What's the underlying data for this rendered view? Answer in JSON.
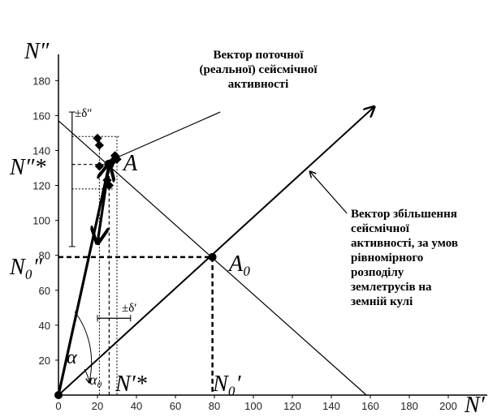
{
  "chart_data": {
    "type": "scatter",
    "xlim": [
      0,
      220
    ],
    "ylim": [
      0,
      195
    ],
    "xticks": [
      0,
      20,
      40,
      60,
      80,
      100,
      120,
      140,
      160,
      180,
      200
    ],
    "yticks": [
      20,
      40,
      60,
      80,
      100,
      120,
      140,
      160,
      180
    ],
    "series": [
      {
        "color": "#000000",
        "marker": "diamond",
        "x": [
          20,
          21,
          21,
          25,
          26,
          29,
          30,
          28
        ],
        "values": [
          147,
          143,
          131,
          123,
          120,
          137,
          135,
          134
        ]
      },
      {
        "color": "#000000",
        "marker": "dot",
        "x": [
          0,
          26,
          79
        ],
        "values": [
          0,
          132,
          79
        ]
      }
    ],
    "lines": [
      {
        "style": "medium",
        "arrow": "end",
        "x": [
          0,
          162
        ],
        "values": [
          0,
          165
        ]
      },
      {
        "style": "thin",
        "arrow": "none",
        "x": [
          0,
          158
        ],
        "values": [
          157,
          0
        ]
      },
      {
        "style": "thin",
        "arrow": "none",
        "x": [
          26,
          83
        ],
        "values": [
          134,
          162
        ]
      },
      {
        "style": "bold",
        "arrow": "end",
        "x": [
          26,
          20
        ],
        "values": [
          132,
          87
        ]
      },
      {
        "style": "bold",
        "arrow": "end",
        "x": [
          0,
          26
        ],
        "values": [
          0,
          132
        ]
      },
      {
        "style": "thin",
        "arrow": "end",
        "x": [
          148,
          129
        ],
        "values": [
          104,
          128
        ]
      },
      {
        "style": "dashed-bold",
        "arrow": "none",
        "x": [
          0,
          79
        ],
        "values": [
          79,
          79
        ]
      },
      {
        "style": "dashed-bold",
        "arrow": "none",
        "x": [
          79,
          79
        ],
        "values": [
          79,
          0
        ]
      },
      {
        "style": "dashed",
        "arrow": "none",
        "x": [
          7,
          26
        ],
        "values": [
          132,
          132
        ]
      },
      {
        "style": "dashed",
        "arrow": "none",
        "x": [
          26,
          26
        ],
        "values": [
          132,
          0
        ]
      },
      {
        "style": "dotted",
        "arrow": "none",
        "x": [
          7,
          31
        ],
        "values": [
          148,
          148
        ]
      },
      {
        "style": "dotted",
        "arrow": "none",
        "x": [
          7,
          28
        ],
        "values": [
          118,
          118
        ]
      },
      {
        "style": "dotted",
        "arrow": "none",
        "x": [
          21,
          21
        ],
        "values": [
          148,
          0
        ]
      },
      {
        "style": "dotted",
        "arrow": "none",
        "x": [
          30,
          30
        ],
        "values": [
          148,
          0
        ]
      },
      {
        "style": "thin",
        "arrow": "none",
        "x": [
          7,
          7
        ],
        "values": [
          85,
          162
        ]
      },
      {
        "style": "thin",
        "arrow": "none",
        "x": [
          20,
          37
        ],
        "values": [
          44,
          44
        ]
      }
    ],
    "annotations": [
      "N″",
      "N″*",
      "N₀″",
      "A",
      "A₀",
      "N′*",
      "N₀′",
      "N′",
      "α",
      "α₀",
      "±δ″",
      "±δ′",
      [
        "Вектор поточної",
        "(реальної) сейсмічної",
        "активності"
      ],
      [
        "Вектор збільшення",
        "сейсмічної",
        "активності, за умов",
        "рівномірного",
        "розподілу",
        "землетрусів на",
        "земній кулі"
      ]
    ]
  }
}
